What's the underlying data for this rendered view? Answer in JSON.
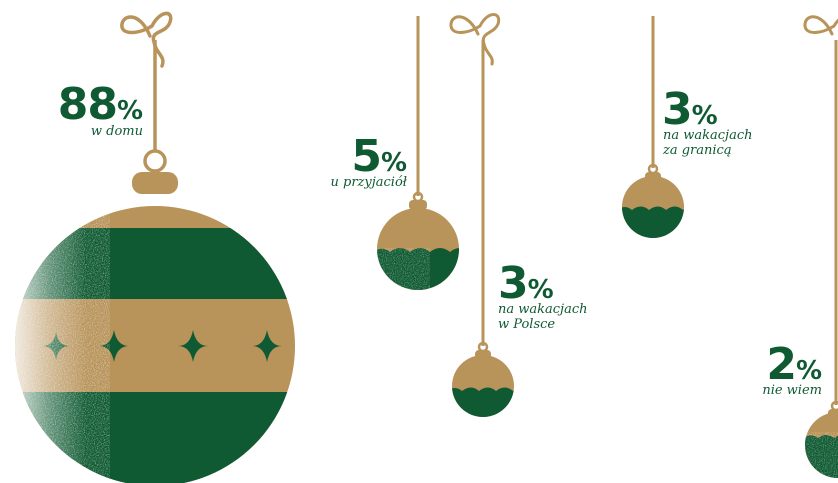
{
  "colors": {
    "gold": "#b8935a",
    "green": "#0f5a32",
    "background": "#ffffff"
  },
  "chart_data": {
    "type": "pie",
    "unit": "%",
    "categories": [
      "w domu",
      "u przyjaciół",
      "na wakacjach w Polsce",
      "na wakacjach za granicą",
      "nie wiem"
    ],
    "values": [
      88,
      5,
      3,
      3,
      2
    ],
    "items": [
      {
        "value": "88",
        "unit": "%",
        "label_lines": [
          "w domu"
        ]
      },
      {
        "value": "5",
        "unit": "%",
        "label_lines": [
          "u przyjaciół"
        ]
      },
      {
        "value": "3",
        "unit": "%",
        "label_lines": [
          "na wakacjach",
          "w Polsce"
        ]
      },
      {
        "value": "3",
        "unit": "%",
        "label_lines": [
          "na wakacjach",
          "za granicą"
        ]
      },
      {
        "value": "2",
        "unit": "%",
        "label_lines": [
          "nie wiem"
        ]
      }
    ]
  }
}
